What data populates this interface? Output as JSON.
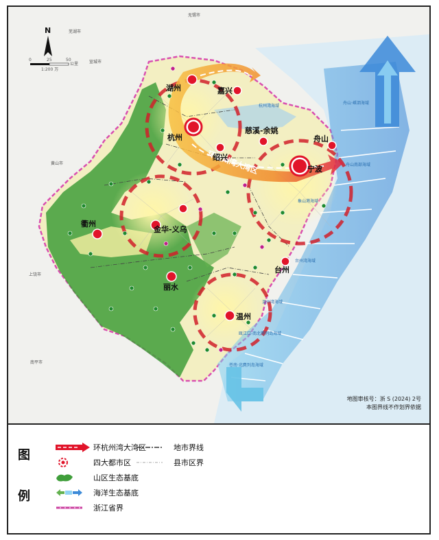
{
  "map": {
    "north": "N",
    "scale_ticks": [
      "0",
      "25",
      "50"
    ],
    "scale_unit": "公里",
    "scale_ratio": "1:200 万",
    "approval": "地图审核号：浙 S (2024) 2号",
    "disclaimer": "本图界线不作划界依据",
    "band_label": "环杭州湾大湾区",
    "cities": {
      "huzhou": "湖州",
      "jiaxing": "嘉兴",
      "hangzhou": "杭州",
      "shaoxing": "绍兴",
      "cixi": "慈溪-余姚",
      "zhoushan": "舟山",
      "ningbo": "宁波",
      "quzhou": "衢州",
      "jinhua": "金华-义乌",
      "lishui": "丽水",
      "taizhou": "台州",
      "wenzhou": "温州"
    },
    "sea_labels": {
      "hangzhou_bay": "杭州湾海域",
      "zhoushan_north": "舟山·嵊泗海域",
      "zhoushan_south": "舟山南部海域",
      "xiangshan": "象山港海域",
      "taizhou": "台州湾海域",
      "wenzhou": "温州湾海域",
      "oujiang": "瓯江口-南北麂列岛海域",
      "south": "苍南·北麂列岛海域"
    },
    "outer_places": [
      "芜湖市",
      "无锡市",
      "宣城市",
      "上饶市",
      "南平市",
      "黄山市"
    ]
  },
  "legend": {
    "title_top": "图",
    "title_bottom": "例",
    "items": [
      {
        "label": "环杭州湾大湾区"
      },
      {
        "label": "四大都市区"
      },
      {
        "label": "山区生态基底"
      },
      {
        "label": "海洋生态基底"
      },
      {
        "label": "浙江省界"
      },
      {
        "label": "地市界线"
      },
      {
        "label": "县市区界"
      }
    ]
  },
  "colors": {
    "green": "#3f9e3a",
    "red": "#e1142a",
    "orange": "#f5a623",
    "sea": "#5ab6e6",
    "border": "#d94fb0"
  }
}
